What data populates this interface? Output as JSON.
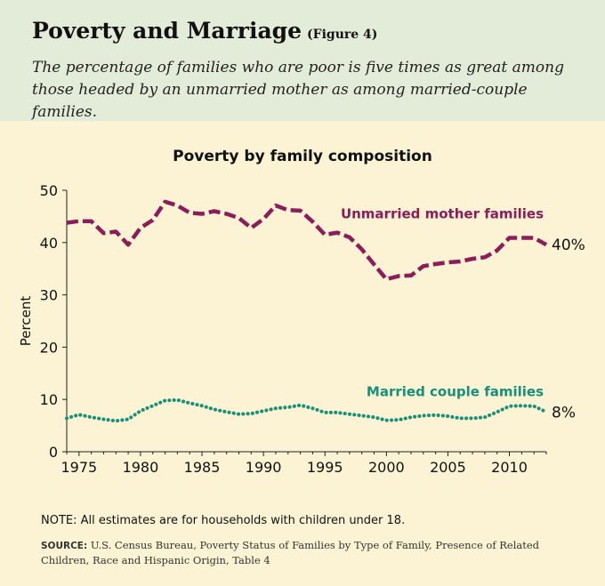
{
  "header": {
    "title": "Poverty and Marriage",
    "figure_label": "(Figure 4)",
    "subtitle": "The percentage of families who are poor is five times as great among those headed by an unmarried mother as among married-couple families."
  },
  "note": "NOTE: All estimates are for households with children under 18.",
  "source": {
    "label": "SOURCE:",
    "text": "U.S. Census Bureau, Poverty Status of Families by Type of Family, Presence of Related Children, Race and Hispanic Origin, Table 4"
  },
  "chart_data": {
    "type": "line",
    "title": "Poverty by family composition",
    "ylabel": "Percent",
    "xlabel": "",
    "xlim": [
      1974,
      2013
    ],
    "ylim": [
      0,
      50
    ],
    "x_ticks": [
      1975,
      1980,
      1985,
      1990,
      1995,
      2000,
      2005,
      2010
    ],
    "y_ticks": [
      0,
      10,
      20,
      30,
      40,
      50
    ],
    "grid": false,
    "x": [
      1974,
      1975,
      1976,
      1977,
      1978,
      1979,
      1980,
      1981,
      1982,
      1983,
      1984,
      1985,
      1986,
      1987,
      1988,
      1989,
      1990,
      1991,
      1992,
      1993,
      1994,
      1995,
      1996,
      1997,
      1998,
      1999,
      2000,
      2001,
      2002,
      2003,
      2004,
      2005,
      2006,
      2007,
      2008,
      2009,
      2010,
      2011,
      2012,
      2013
    ],
    "series": [
      {
        "name": "Unmarried mother families",
        "color": "#8c1c5a",
        "style": "dashed",
        "end_label": "40%",
        "values": [
          43.8,
          44.1,
          44.1,
          41.8,
          42.1,
          39.6,
          42.8,
          44.3,
          47.8,
          47.1,
          45.7,
          45.5,
          46.0,
          45.5,
          44.7,
          42.8,
          44.5,
          47.1,
          46.2,
          46.1,
          44.0,
          41.5,
          41.9,
          41.0,
          38.7,
          35.8,
          33.0,
          33.6,
          33.7,
          35.5,
          35.9,
          36.2,
          36.4,
          36.9,
          37.2,
          38.5,
          40.9,
          40.9,
          40.9,
          39.6
        ]
      },
      {
        "name": "Married couple families",
        "color": "#169079",
        "style": "dotted",
        "end_label": "8%",
        "values": [
          6.4,
          7.1,
          6.6,
          6.2,
          5.9,
          6.2,
          7.8,
          8.8,
          9.8,
          9.9,
          9.3,
          8.8,
          8.1,
          7.6,
          7.2,
          7.3,
          7.8,
          8.3,
          8.5,
          8.9,
          8.3,
          7.5,
          7.5,
          7.2,
          6.9,
          6.6,
          6.0,
          6.1,
          6.6,
          6.9,
          7.0,
          6.8,
          6.4,
          6.4,
          6.6,
          7.6,
          8.7,
          8.8,
          8.7,
          7.6
        ]
      }
    ]
  }
}
